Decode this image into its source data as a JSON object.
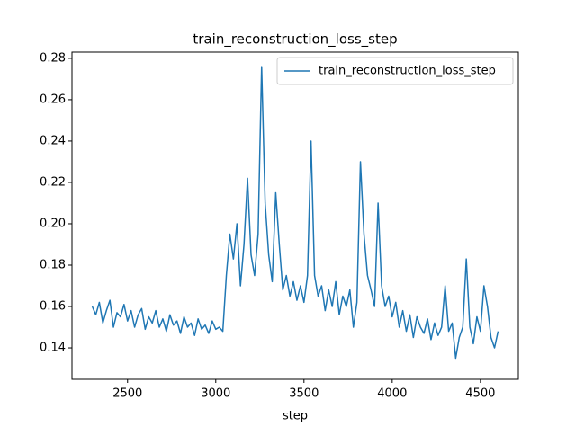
{
  "chart_data": {
    "type": "line",
    "title": "train_reconstruction_loss_step",
    "x_label": "step",
    "x": [
      2300,
      2320,
      2340,
      2360,
      2380,
      2400,
      2420,
      2440,
      2460,
      2480,
      2500,
      2520,
      2540,
      2560,
      2580,
      2600,
      2620,
      2640,
      2660,
      2680,
      2700,
      2720,
      2740,
      2760,
      2780,
      2800,
      2820,
      2840,
      2860,
      2880,
      2900,
      2920,
      2940,
      2960,
      2980,
      3000,
      3020,
      3040,
      3060,
      3080,
      3100,
      3120,
      3140,
      3160,
      3180,
      3200,
      3220,
      3240,
      3260,
      3280,
      3300,
      3320,
      3340,
      3360,
      3380,
      3400,
      3420,
      3440,
      3460,
      3480,
      3500,
      3520,
      3540,
      3560,
      3580,
      3600,
      3620,
      3640,
      3660,
      3680,
      3700,
      3720,
      3740,
      3760,
      3780,
      3800,
      3820,
      3840,
      3860,
      3880,
      3900,
      3920,
      3940,
      3960,
      3980,
      4000,
      4020,
      4040,
      4060,
      4080,
      4100,
      4120,
      4140,
      4160,
      4180,
      4200,
      4220,
      4240,
      4260,
      4280,
      4300,
      4320,
      4340,
      4360,
      4380,
      4400,
      4420,
      4440,
      4460,
      4480,
      4500,
      4520,
      4540,
      4560,
      4580,
      4600
    ],
    "series": [
      {
        "name": "train_reconstruction_loss_step",
        "color": "#1f77b4",
        "values": [
          0.16,
          0.156,
          0.162,
          0.152,
          0.158,
          0.163,
          0.15,
          0.157,
          0.155,
          0.161,
          0.153,
          0.158,
          0.15,
          0.156,
          0.159,
          0.149,
          0.155,
          0.152,
          0.158,
          0.15,
          0.154,
          0.148,
          0.156,
          0.151,
          0.153,
          0.147,
          0.155,
          0.15,
          0.152,
          0.146,
          0.154,
          0.149,
          0.151,
          0.147,
          0.153,
          0.149,
          0.15,
          0.148,
          0.175,
          0.195,
          0.183,
          0.2,
          0.17,
          0.19,
          0.222,
          0.185,
          0.175,
          0.195,
          0.276,
          0.21,
          0.185,
          0.172,
          0.215,
          0.19,
          0.168,
          0.175,
          0.165,
          0.172,
          0.163,
          0.17,
          0.162,
          0.175,
          0.24,
          0.175,
          0.165,
          0.17,
          0.158,
          0.168,
          0.16,
          0.172,
          0.156,
          0.165,
          0.16,
          0.168,
          0.15,
          0.162,
          0.23,
          0.195,
          0.175,
          0.168,
          0.16,
          0.21,
          0.17,
          0.16,
          0.165,
          0.155,
          0.162,
          0.15,
          0.158,
          0.148,
          0.156,
          0.145,
          0.155,
          0.15,
          0.147,
          0.154,
          0.144,
          0.152,
          0.146,
          0.15,
          0.17,
          0.148,
          0.152,
          0.135,
          0.145,
          0.15,
          0.183,
          0.15,
          0.142,
          0.155,
          0.148,
          0.17,
          0.16,
          0.145,
          0.14,
          0.148
        ]
      }
    ],
    "xlim": [
      2185,
      4715
    ],
    "ylim": [
      0.1248,
      0.283
    ],
    "xticks": [
      2500,
      3000,
      3500,
      4000,
      4500
    ],
    "yticks": [
      {
        "value": 0.14,
        "label": "0.14"
      },
      {
        "value": 0.16,
        "label": "0.16"
      },
      {
        "value": 0.18,
        "label": "0.18"
      },
      {
        "value": 0.2,
        "label": "0.20"
      },
      {
        "value": 0.22,
        "label": "0.22"
      },
      {
        "value": 0.24,
        "label": "0.24"
      },
      {
        "value": 0.26,
        "label": "0.26"
      },
      {
        "value": 0.28,
        "label": "0.28"
      }
    ],
    "legend": "upper right"
  }
}
